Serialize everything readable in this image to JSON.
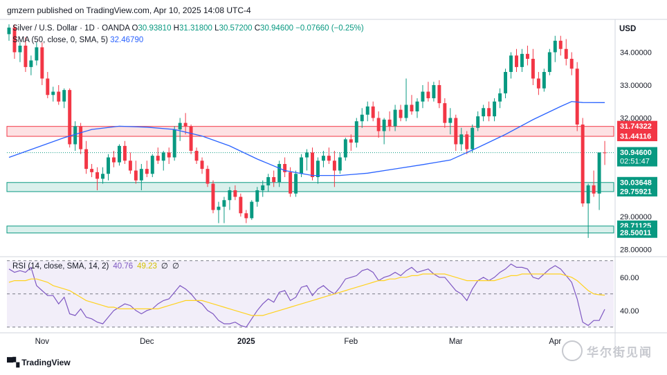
{
  "header": {
    "published": "gmzern published on TradingView.com, Apr 10, 2025 14:08 UTC-4",
    "symbol": "Silver / U.S. Dollar · 1D · OANDA",
    "open_label": "O",
    "open": "30.93810",
    "high_label": "H",
    "high": "31.31800",
    "low_label": "L",
    "low": "30.57200",
    "close_label": "C",
    "close": "30.94600",
    "change": "−0.07660 (−0.25%)",
    "sma_label": "SMA (50, close, 0, SMA, 5)",
    "sma_value": "32.46790",
    "rsi_label": "RSI (14, close, SMA, 14, 2)",
    "rsi_value": "40.76",
    "rsi_sma_value": "49.23",
    "rsi_extra1": "∅",
    "rsi_extra2": "∅",
    "currency": "USD",
    "brand": "TradingView",
    "watermark": "华尔街见闻"
  },
  "chart_data": [
    {
      "type": "candlestick",
      "title": "Silver / U.S. Dollar · 1D · OANDA",
      "ylim": [
        27.8,
        35.0
      ],
      "y_ticks": [
        {
          "value": 34.0,
          "label": "34.00000"
        },
        {
          "value": 33.0,
          "label": "33.00000"
        },
        {
          "value": 32.0,
          "label": "32.00000"
        },
        {
          "value": 29.0,
          "label": "29.00000"
        },
        {
          "value": 28.0,
          "label": "28.00000"
        }
      ],
      "x_labels": [
        {
          "label": "Nov",
          "index": 6
        },
        {
          "label": "Dec",
          "index": 25
        },
        {
          "label": "2025",
          "index": 43
        },
        {
          "label": "Feb",
          "index": 62
        },
        {
          "label": "Mar",
          "index": 81
        },
        {
          "label": "Apr",
          "index": 99
        }
      ],
      "zones": [
        {
          "low": 31.44116,
          "high": 31.74322,
          "color": "#f23645"
        },
        {
          "low": 29.75921,
          "high": 30.03648,
          "color": "#089981"
        },
        {
          "low": 28.50011,
          "high": 28.71125,
          "color": "#089981"
        }
      ],
      "price_tags": [
        {
          "value": 31.74322,
          "label": "31.74322",
          "color": "#f23645"
        },
        {
          "value": 31.44116,
          "label": "31.44116",
          "color": "#f23645"
        },
        {
          "value": 30.946,
          "label": "30.94600",
          "sub": "02:51:47",
          "color": "#089981"
        },
        {
          "value": 30.03648,
          "label": "30.03648",
          "color": "#089981"
        },
        {
          "value": 29.75921,
          "label": "29.75921",
          "color": "#089981"
        },
        {
          "value": 28.71125,
          "label": "28.71125",
          "color": "#089981"
        },
        {
          "value": 28.50011,
          "label": "28.50011",
          "color": "#089981"
        }
      ],
      "current_price": 30.946,
      "candles": [
        [
          34.55,
          34.85,
          34.35,
          34.75
        ],
        [
          34.75,
          34.85,
          33.8,
          34.0
        ],
        [
          34.0,
          34.3,
          33.7,
          34.2
        ],
        [
          34.2,
          34.45,
          33.4,
          33.55
        ],
        [
          33.55,
          33.9,
          33.3,
          33.75
        ],
        [
          33.75,
          34.3,
          33.6,
          34.15
        ],
        [
          34.15,
          34.3,
          33.0,
          33.2
        ],
        [
          33.2,
          33.4,
          32.6,
          32.7
        ],
        [
          32.7,
          32.95,
          32.5,
          32.8
        ],
        [
          32.8,
          33.0,
          32.4,
          32.5
        ],
        [
          32.5,
          32.9,
          32.3,
          32.85
        ],
        [
          32.85,
          32.9,
          31.1,
          31.2
        ],
        [
          31.2,
          31.9,
          31.0,
          31.75
        ],
        [
          31.75,
          31.85,
          30.9,
          31.05
        ],
        [
          31.05,
          31.3,
          30.3,
          30.45
        ],
        [
          30.45,
          30.6,
          30.2,
          30.35
        ],
        [
          30.35,
          30.5,
          29.8,
          30.15
        ],
        [
          30.15,
          30.5,
          30.0,
          30.3
        ],
        [
          30.3,
          30.9,
          30.1,
          30.8
        ],
        [
          30.8,
          31.0,
          30.5,
          30.65
        ],
        [
          30.65,
          31.2,
          30.55,
          31.15
        ],
        [
          31.15,
          31.3,
          30.6,
          30.7
        ],
        [
          30.7,
          30.95,
          30.3,
          30.4
        ],
        [
          30.4,
          30.7,
          30.0,
          30.1
        ],
        [
          30.1,
          30.6,
          29.8,
          30.45
        ],
        [
          30.45,
          30.7,
          30.2,
          30.3
        ],
        [
          30.3,
          30.9,
          30.2,
          30.85
        ],
        [
          30.85,
          31.1,
          30.6,
          30.7
        ],
        [
          30.7,
          31.0,
          30.4,
          30.95
        ],
        [
          30.95,
          31.1,
          30.6,
          30.8
        ],
        [
          30.8,
          31.75,
          30.7,
          31.65
        ],
        [
          31.65,
          32.0,
          31.3,
          31.85
        ],
        [
          31.85,
          32.15,
          31.5,
          31.75
        ],
        [
          31.75,
          31.8,
          30.9,
          31.0
        ],
        [
          31.0,
          31.1,
          30.6,
          30.7
        ],
        [
          30.7,
          30.8,
          30.3,
          30.45
        ],
        [
          30.45,
          30.55,
          29.9,
          30.0
        ],
        [
          30.0,
          30.1,
          29.1,
          29.2
        ],
        [
          29.2,
          29.45,
          28.8,
          29.3
        ],
        [
          29.3,
          29.6,
          28.8,
          29.5
        ],
        [
          29.5,
          29.9,
          29.2,
          29.8
        ],
        [
          29.8,
          29.95,
          29.5,
          29.6
        ],
        [
          29.6,
          29.7,
          29.0,
          29.1
        ],
        [
          29.1,
          29.2,
          28.8,
          28.95
        ],
        [
          28.95,
          29.5,
          28.9,
          29.45
        ],
        [
          29.45,
          29.9,
          29.3,
          29.8
        ],
        [
          29.8,
          30.1,
          29.6,
          29.95
        ],
        [
          29.95,
          30.3,
          29.75,
          30.2
        ],
        [
          30.2,
          30.4,
          29.9,
          30.05
        ],
        [
          30.05,
          30.7,
          29.9,
          30.6
        ],
        [
          30.6,
          30.8,
          30.2,
          30.35
        ],
        [
          30.35,
          30.5,
          29.6,
          29.7
        ],
        [
          29.7,
          30.4,
          29.6,
          30.3
        ],
        [
          30.3,
          30.9,
          30.2,
          30.8
        ],
        [
          30.8,
          31.05,
          30.4,
          30.95
        ],
        [
          30.95,
          31.1,
          30.1,
          30.2
        ],
        [
          30.2,
          30.8,
          30.0,
          30.7
        ],
        [
          30.7,
          31.0,
          30.5,
          30.85
        ],
        [
          30.85,
          31.1,
          30.6,
          30.7
        ],
        [
          30.7,
          31.0,
          29.9,
          30.4
        ],
        [
          30.4,
          30.95,
          30.3,
          30.8
        ],
        [
          30.8,
          31.4,
          30.7,
          31.35
        ],
        [
          31.35,
          31.5,
          31.0,
          31.25
        ],
        [
          31.25,
          32.0,
          31.1,
          31.9
        ],
        [
          31.9,
          32.3,
          31.7,
          32.1
        ],
        [
          32.1,
          32.5,
          31.9,
          32.35
        ],
        [
          32.35,
          32.5,
          31.9,
          32.0
        ],
        [
          32.0,
          32.2,
          31.4,
          31.6
        ],
        [
          31.6,
          32.0,
          31.2,
          31.95
        ],
        [
          31.95,
          32.2,
          31.6,
          31.75
        ],
        [
          31.75,
          32.4,
          31.6,
          32.25
        ],
        [
          32.25,
          32.4,
          31.9,
          32.0
        ],
        [
          32.0,
          33.2,
          31.9,
          32.4
        ],
        [
          32.4,
          32.7,
          32.1,
          32.2
        ],
        [
          32.2,
          32.6,
          32.0,
          32.5
        ],
        [
          32.5,
          33.0,
          32.3,
          32.8
        ],
        [
          32.8,
          33.1,
          32.5,
          32.6
        ],
        [
          32.6,
          33.1,
          32.5,
          33.0
        ],
        [
          33.0,
          33.15,
          32.3,
          32.45
        ],
        [
          32.45,
          32.6,
          31.7,
          31.85
        ],
        [
          31.85,
          32.3,
          31.5,
          32.0
        ],
        [
          32.0,
          32.1,
          31.0,
          31.2
        ],
        [
          31.2,
          31.7,
          31.0,
          31.5
        ],
        [
          31.5,
          31.6,
          30.9,
          31.05
        ],
        [
          31.05,
          31.8,
          30.95,
          31.7
        ],
        [
          31.7,
          32.2,
          31.6,
          32.05
        ],
        [
          32.05,
          32.4,
          31.9,
          32.3
        ],
        [
          32.3,
          32.5,
          31.9,
          32.05
        ],
        [
          32.05,
          32.6,
          31.9,
          32.5
        ],
        [
          32.5,
          32.9,
          32.3,
          32.75
        ],
        [
          32.75,
          33.5,
          32.6,
          33.4
        ],
        [
          33.4,
          34.0,
          33.2,
          33.9
        ],
        [
          33.9,
          34.1,
          33.4,
          33.55
        ],
        [
          33.55,
          34.1,
          33.4,
          33.95
        ],
        [
          33.95,
          34.2,
          33.6,
          33.8
        ],
        [
          33.8,
          34.1,
          33.0,
          33.2
        ],
        [
          33.2,
          33.4,
          32.7,
          32.9
        ],
        [
          32.9,
          33.5,
          32.8,
          33.4
        ],
        [
          33.4,
          34.1,
          33.3,
          34.0
        ],
        [
          34.0,
          34.5,
          33.7,
          34.35
        ],
        [
          34.35,
          34.5,
          33.9,
          34.1
        ],
        [
          34.1,
          34.4,
          33.6,
          33.8
        ],
        [
          33.8,
          34.0,
          33.3,
          33.5
        ],
        [
          33.5,
          33.7,
          31.6,
          31.8
        ],
        [
          31.8,
          32.0,
          29.3,
          29.4
        ],
        [
          29.4,
          30.0,
          28.35,
          29.95
        ],
        [
          29.95,
          30.4,
          29.6,
          29.7
        ],
        [
          29.7,
          30.9,
          29.2,
          30.95
        ],
        [
          30.95,
          31.3,
          30.57,
          30.946
        ]
      ],
      "sma": [
        [
          0,
          30.8
        ],
        [
          5,
          31.1
        ],
        [
          10,
          31.4
        ],
        [
          15,
          31.65
        ],
        [
          20,
          31.75
        ],
        [
          25,
          31.72
        ],
        [
          30,
          31.65
        ],
        [
          35,
          31.45
        ],
        [
          40,
          31.15
        ],
        [
          45,
          30.75
        ],
        [
          50,
          30.4
        ],
        [
          55,
          30.25
        ],
        [
          60,
          30.25
        ],
        [
          65,
          30.32
        ],
        [
          70,
          30.45
        ],
        [
          75,
          30.58
        ],
        [
          80,
          30.72
        ],
        [
          85,
          31.1
        ],
        [
          90,
          31.5
        ],
        [
          95,
          31.95
        ],
        [
          100,
          32.35
        ],
        [
          102,
          32.5
        ],
        [
          104,
          32.47
        ],
        [
          108,
          32.467
        ]
      ]
    },
    {
      "type": "line",
      "title": "RSI (14, close, SMA, 14, 2)",
      "ylim": [
        27,
        72
      ],
      "y_ticks": [
        {
          "value": 60,
          "label": "60.00"
        },
        {
          "value": 40,
          "label": "40.00"
        }
      ],
      "bands": [
        70,
        50,
        30
      ],
      "series": [
        {
          "name": "RSI",
          "color": "#7e57c2",
          "values": [
            65,
            63,
            64,
            63,
            66,
            55,
            52,
            49,
            49,
            44,
            48,
            38,
            37,
            41,
            36,
            35,
            33,
            32,
            36,
            40,
            42,
            44,
            43,
            40,
            38,
            40,
            41,
            44,
            46,
            47,
            51,
            55,
            53,
            50,
            46,
            44,
            40,
            38,
            34,
            32,
            32,
            33,
            31,
            30,
            35,
            40,
            44,
            47,
            45,
            51,
            52,
            46,
            48,
            54,
            55,
            49,
            53,
            55,
            52,
            50,
            54,
            59,
            60,
            61,
            64,
            65,
            63,
            58,
            60,
            61,
            63,
            61,
            64,
            66,
            63,
            64,
            65,
            62,
            60,
            60,
            56,
            52,
            50,
            46,
            53,
            58,
            60,
            58,
            60,
            63,
            65,
            68,
            66,
            66,
            65,
            60,
            59,
            62,
            65,
            67,
            65,
            61,
            57,
            47,
            33,
            31,
            34,
            34,
            40.76
          ]
        },
        {
          "name": "RSI SMA",
          "color": "#ffd21e",
          "values": [
            57,
            58,
            58,
            58,
            59,
            59,
            58,
            57,
            55,
            54,
            53,
            52,
            50,
            48,
            46,
            45,
            44,
            43,
            42,
            42,
            41,
            41,
            41,
            41,
            41,
            41,
            41,
            41,
            42,
            43,
            44,
            45,
            46,
            46,
            46,
            46,
            45,
            44,
            43,
            42,
            41,
            40,
            39,
            38,
            37,
            37,
            37,
            38,
            39,
            40,
            41,
            42,
            43,
            44,
            45,
            46,
            47,
            48,
            49,
            50,
            51,
            52,
            53,
            54,
            55,
            56,
            57,
            58,
            58,
            59,
            59,
            60,
            60,
            61,
            61,
            62,
            62,
            62,
            62,
            62,
            61,
            60,
            59,
            58,
            58,
            58,
            58,
            58,
            58,
            59,
            60,
            61,
            61,
            62,
            62,
            62,
            62,
            62,
            62,
            62,
            62,
            61,
            60,
            58,
            55,
            52,
            50,
            49.5,
            49.23
          ]
        }
      ]
    }
  ]
}
